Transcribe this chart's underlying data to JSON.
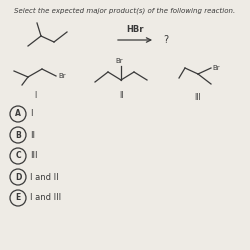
{
  "title": "Select the expected major product(s) of the following reaction.",
  "reagent": "HBr",
  "question_mark": "?",
  "bg_color": "#eeebe5",
  "text_color": "#3a3a3a",
  "choices": [
    "A",
    "B",
    "C",
    "D",
    "E"
  ],
  "choice_labels": [
    "I",
    "II",
    "III",
    "I and II",
    "I and III"
  ]
}
